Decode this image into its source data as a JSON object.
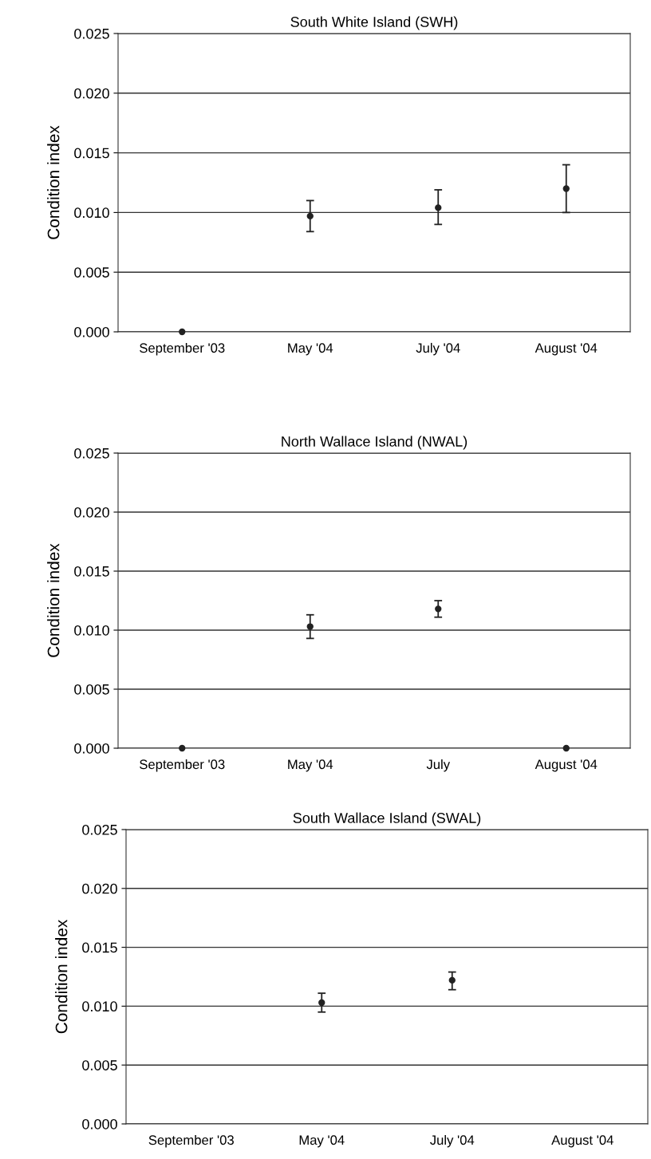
{
  "chart_data": [
    {
      "type": "scatter",
      "title": "South White Island (SWH)",
      "ylabel": "Condition index",
      "categories": [
        "September '03",
        "May '04",
        "July '04",
        "August '04"
      ],
      "values": [
        0.0,
        0.0097,
        0.0104,
        0.012
      ],
      "errors": [
        null,
        [
          0.0084,
          0.011
        ],
        [
          0.009,
          0.0119
        ],
        [
          0.01,
          0.014
        ]
      ],
      "color": "#222222",
      "marker": "circle",
      "grid": "y",
      "ylim": [
        0,
        0.025
      ],
      "yticks": [
        {
          "value": 0,
          "label": "0.000"
        },
        {
          "value": 0.005,
          "label": "0.005"
        },
        {
          "value": 0.01,
          "label": "0.010"
        },
        {
          "value": 0.015,
          "label": "0.015"
        },
        {
          "value": 0.02,
          "label": "0.020"
        },
        {
          "value": 0.025,
          "label": "0.025"
        }
      ]
    },
    {
      "type": "scatter",
      "title": "North Wallace Island (NWAL)",
      "ylabel": "Condition index",
      "categories": [
        "September '03",
        "May '04",
        "July",
        "August '04"
      ],
      "values": [
        0.0,
        0.0103,
        0.0118,
        0.0
      ],
      "errors": [
        null,
        [
          0.0093,
          0.0113
        ],
        [
          0.0111,
          0.0125
        ],
        null
      ],
      "color": "#222222",
      "marker": "circle",
      "grid": "y",
      "ylim": [
        0,
        0.025
      ],
      "yticks": [
        {
          "value": 0,
          "label": "0.000"
        },
        {
          "value": 0.005,
          "label": "0.005"
        },
        {
          "value": 0.01,
          "label": "0.010"
        },
        {
          "value": 0.015,
          "label": "0.015"
        },
        {
          "value": 0.02,
          "label": "0.020"
        },
        {
          "value": 0.025,
          "label": "0.025"
        }
      ]
    },
    {
      "type": "scatter",
      "title": "South Wallace Island (SWAL)",
      "ylabel": "Condition index",
      "categories": [
        "September '03",
        "May '04",
        "July '04",
        "August '04"
      ],
      "values": [
        null,
        0.0103,
        0.0122,
        null
      ],
      "errors": [
        null,
        [
          0.0095,
          0.0111
        ],
        [
          0.0114,
          0.0129
        ],
        null
      ],
      "color": "#222222",
      "marker": "circle",
      "grid": "y",
      "ylim": [
        0,
        0.025
      ],
      "yticks": [
        {
          "value": 0,
          "label": "0.000"
        },
        {
          "value": 0.005,
          "label": "0.005"
        },
        {
          "value": 0.01,
          "label": "0.010"
        },
        {
          "value": 0.015,
          "label": "0.015"
        },
        {
          "value": 0.02,
          "label": "0.020"
        },
        {
          "value": 0.025,
          "label": "0.025"
        }
      ]
    }
  ]
}
